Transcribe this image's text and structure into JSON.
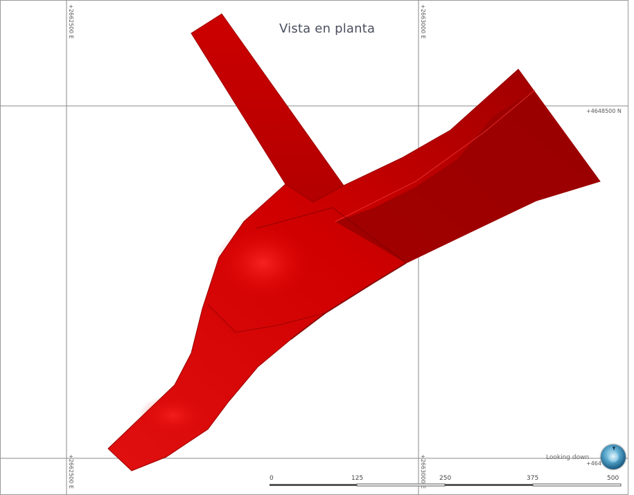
{
  "view": {
    "title": "Vista en planta",
    "orientation_label": "Looking down"
  },
  "grid": {
    "easting_labels": [
      "+2662500 E",
      "+2663000 E"
    ],
    "northing_labels": [
      "+4648500 N",
      "+4648000 N"
    ]
  },
  "scale_bar": {
    "ticks": [
      "0",
      "125",
      "250",
      "375",
      "500"
    ]
  },
  "colors": {
    "solid_fill": "#d10000",
    "solid_dark": "#8f0000",
    "solid_light": "#ff1a1a",
    "grid_line": "#8a8a8a"
  },
  "icons": {
    "compass": "compass-icon"
  }
}
